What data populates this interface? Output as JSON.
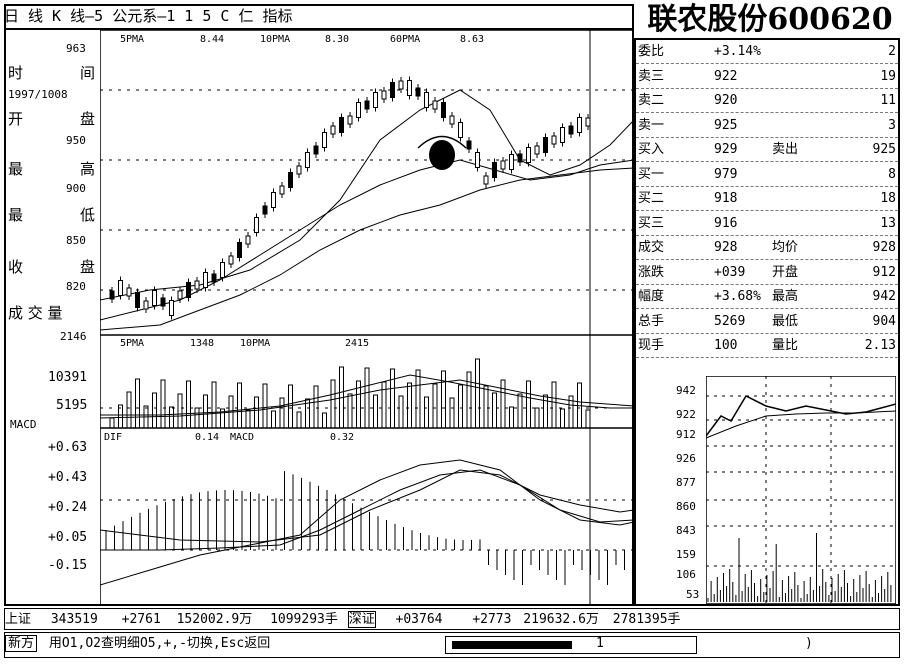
{
  "title_bar": {
    "text": "日 线   K   线—5 公元系—1 1 5 C 仁 指标"
  },
  "stock_title": "联农股份600620",
  "ma_header": {
    "ma5_label": "5PMA",
    "ma5_value": "8.44",
    "ma10_label": "10PMA",
    "ma10_value": "8.30",
    "ma60_label": "60PMA",
    "ma60_value": "8.63"
  },
  "left_panel": {
    "top_value": "963",
    "labels": [
      "时",
      "间",
      "开",
      "盘",
      "最",
      "高",
      "最",
      "低",
      "收",
      "盘",
      "成 交 量"
    ],
    "date": "1997/1008",
    "price_ticks": [
      "950",
      "900",
      "850",
      "820"
    ],
    "volume_top": "2146"
  },
  "volume_panel": {
    "header_5": "5PMA",
    "header_5_val": "1348",
    "header_10": "10PMA",
    "header_10_val": "2415",
    "ticks": [
      "10391",
      "5195"
    ]
  },
  "macd_panel": {
    "label": "MACD",
    "header": "DIF",
    "header_val": "0.14",
    "macd_label": "MACD",
    "macd_val": "0.32",
    "ticks": [
      "+0.63",
      "+0.43",
      "+0.24",
      "+0.05",
      "-0.15"
    ]
  },
  "quote_table": {
    "rows": [
      {
        "label": "委比",
        "value": "+3.14%",
        "right": "2"
      },
      {
        "label": "卖三",
        "value": "922",
        "right": "19"
      },
      {
        "label": "卖二",
        "value": "920",
        "right": "11"
      },
      {
        "label": "卖一",
        "value": "925",
        "right": "3"
      },
      {
        "label": "买入",
        "value": "929",
        "extra": "卖出",
        "right": "925"
      },
      {
        "label": "买一",
        "value": "979",
        "right": "8"
      },
      {
        "label": "买二",
        "value": "918",
        "right": "18"
      },
      {
        "label": "买三",
        "value": "916",
        "right": "13"
      },
      {
        "label": "成交",
        "value": "928",
        "extra": "均价",
        "right": "928"
      },
      {
        "label": "涨跌",
        "value": "+039",
        "extra": "开盘",
        "right": "912"
      },
      {
        "label": "幅度",
        "value": "+3.68%",
        "extra": "最高",
        "right": "942"
      },
      {
        "label": "总手",
        "value": "5269",
        "extra": "最低",
        "right": "904"
      },
      {
        "label": "现手",
        "value": "100",
        "extra": "量比",
        "right": "2.13"
      }
    ]
  },
  "mini_chart": {
    "price_ticks": [
      "942",
      "922",
      "912",
      "926",
      "877",
      "860",
      "843"
    ],
    "vol_ticks": [
      "159",
      "106",
      "53"
    ]
  },
  "status_bar": {
    "sh_label": "上证",
    "sh_index": "343519",
    "sh_change": "+2761",
    "sh_amount": "152002.9万",
    "sh_volume": "1099293手",
    "sz_label": "深证",
    "sz_index": "+03764",
    "sz_change": "+2773",
    "sz_amount": "219632.6万",
    "sz_volume": "2781395手"
  },
  "command_bar": {
    "label": "新方",
    "hint": "用O1,O2查明细O5,+,-切换,Esc返回",
    "input_a": "1",
    "input_b": ")"
  }
}
